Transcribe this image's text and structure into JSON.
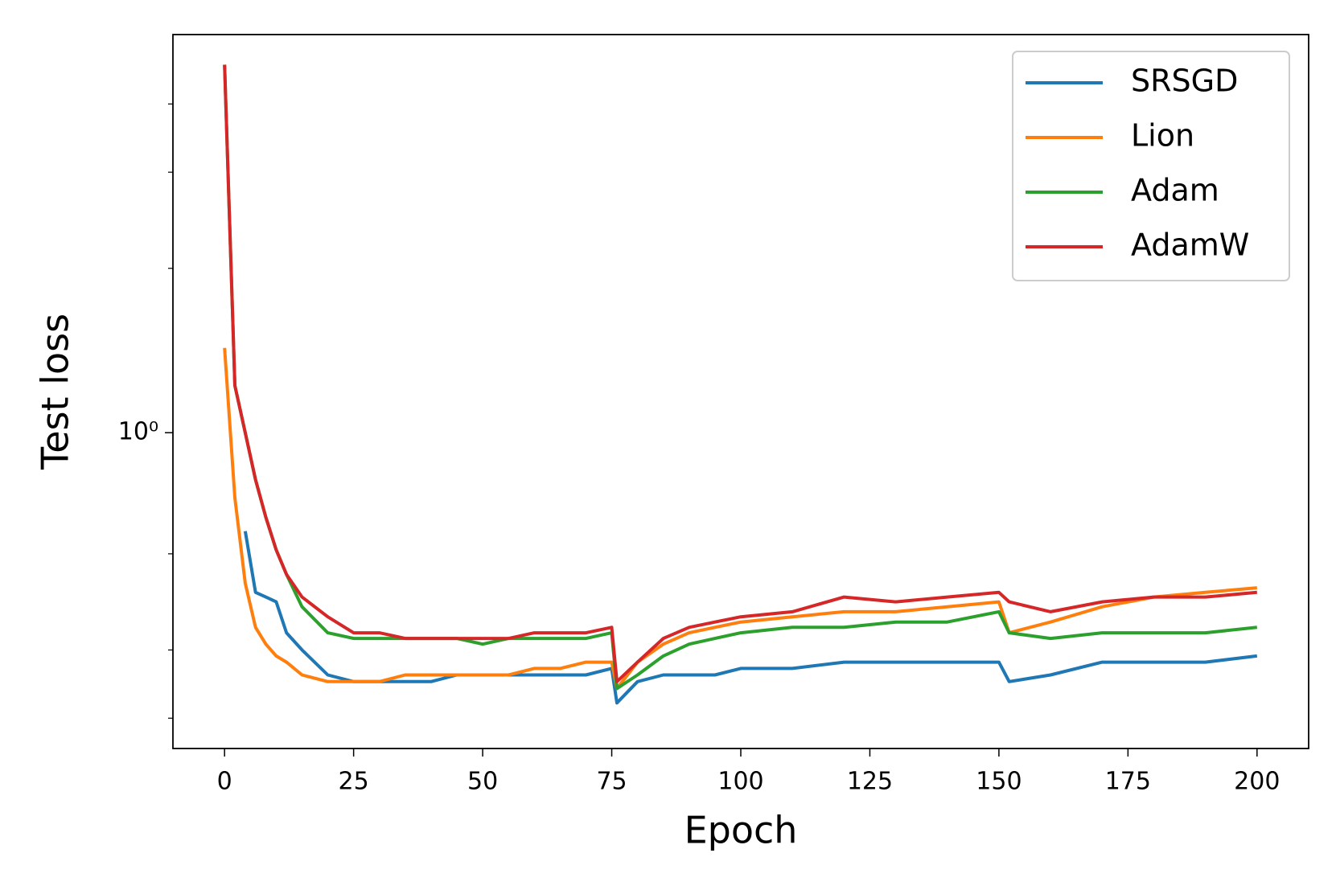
{
  "chart_data": {
    "type": "line",
    "xlabel": "Epoch",
    "ylabel": "Test loss",
    "x": [
      0,
      2,
      4,
      6,
      8,
      10,
      12,
      15,
      20,
      25,
      30,
      35,
      40,
      45,
      50,
      55,
      60,
      65,
      70,
      75,
      76,
      80,
      85,
      90,
      95,
      100,
      110,
      120,
      130,
      140,
      150,
      152,
      160,
      170,
      180,
      190,
      200
    ],
    "series": [
      {
        "name": "SRSGD",
        "color": "#1f77b4",
        "values": [
          null,
          null,
          0.66,
          0.51,
          0.5,
          0.49,
          0.43,
          0.4,
          0.36,
          0.35,
          0.35,
          0.35,
          0.35,
          0.36,
          0.36,
          0.36,
          0.36,
          0.36,
          0.36,
          0.37,
          0.32,
          0.35,
          0.36,
          0.36,
          0.36,
          0.37,
          0.37,
          0.38,
          0.38,
          0.38,
          0.38,
          0.35,
          0.36,
          0.38,
          0.38,
          0.38,
          0.39
        ]
      },
      {
        "name": "Lion",
        "color": "#ff7f0e",
        "values": [
          1.43,
          0.76,
          0.53,
          0.44,
          0.41,
          0.39,
          0.38,
          0.36,
          0.35,
          0.35,
          0.35,
          0.36,
          0.36,
          0.36,
          0.36,
          0.36,
          0.37,
          0.37,
          0.38,
          0.38,
          0.34,
          0.38,
          0.41,
          0.43,
          0.44,
          0.45,
          0.46,
          0.47,
          0.47,
          0.48,
          0.49,
          0.43,
          0.45,
          0.48,
          0.5,
          0.51,
          0.52
        ]
      },
      {
        "name": "Adam",
        "color": "#2ca02c",
        "values": [
          4.72,
          1.22,
          1.0,
          0.82,
          0.7,
          0.61,
          0.55,
          0.48,
          0.43,
          0.42,
          0.42,
          0.42,
          0.42,
          0.42,
          0.41,
          0.42,
          0.42,
          0.42,
          0.42,
          0.43,
          0.34,
          0.36,
          0.39,
          0.41,
          0.42,
          0.43,
          0.44,
          0.44,
          0.45,
          0.45,
          0.47,
          0.43,
          0.42,
          0.43,
          0.43,
          0.43,
          0.44
        ]
      },
      {
        "name": "AdamW",
        "color": "#d62728",
        "values": [
          4.72,
          1.22,
          1.0,
          0.82,
          0.7,
          0.61,
          0.55,
          0.5,
          0.46,
          0.43,
          0.43,
          0.42,
          0.42,
          0.42,
          0.42,
          0.42,
          0.43,
          0.43,
          0.43,
          0.44,
          0.35,
          0.38,
          0.42,
          0.44,
          0.45,
          0.46,
          0.47,
          0.5,
          0.49,
          0.5,
          0.51,
          0.49,
          0.47,
          0.49,
          0.5,
          0.5,
          0.51
        ]
      }
    ],
    "xlim": [
      -10,
      210
    ],
    "xticks": [
      0,
      25,
      50,
      75,
      100,
      125,
      150,
      175,
      200
    ],
    "ylim": [
      0.264,
      5.36
    ],
    "log_y": true,
    "yticks": [
      {
        "value": 1,
        "label": "10⁰"
      }
    ],
    "y_minor_ticks": [
      0.3,
      0.4,
      0.6,
      2,
      3,
      4
    ],
    "legend": "upper right"
  }
}
